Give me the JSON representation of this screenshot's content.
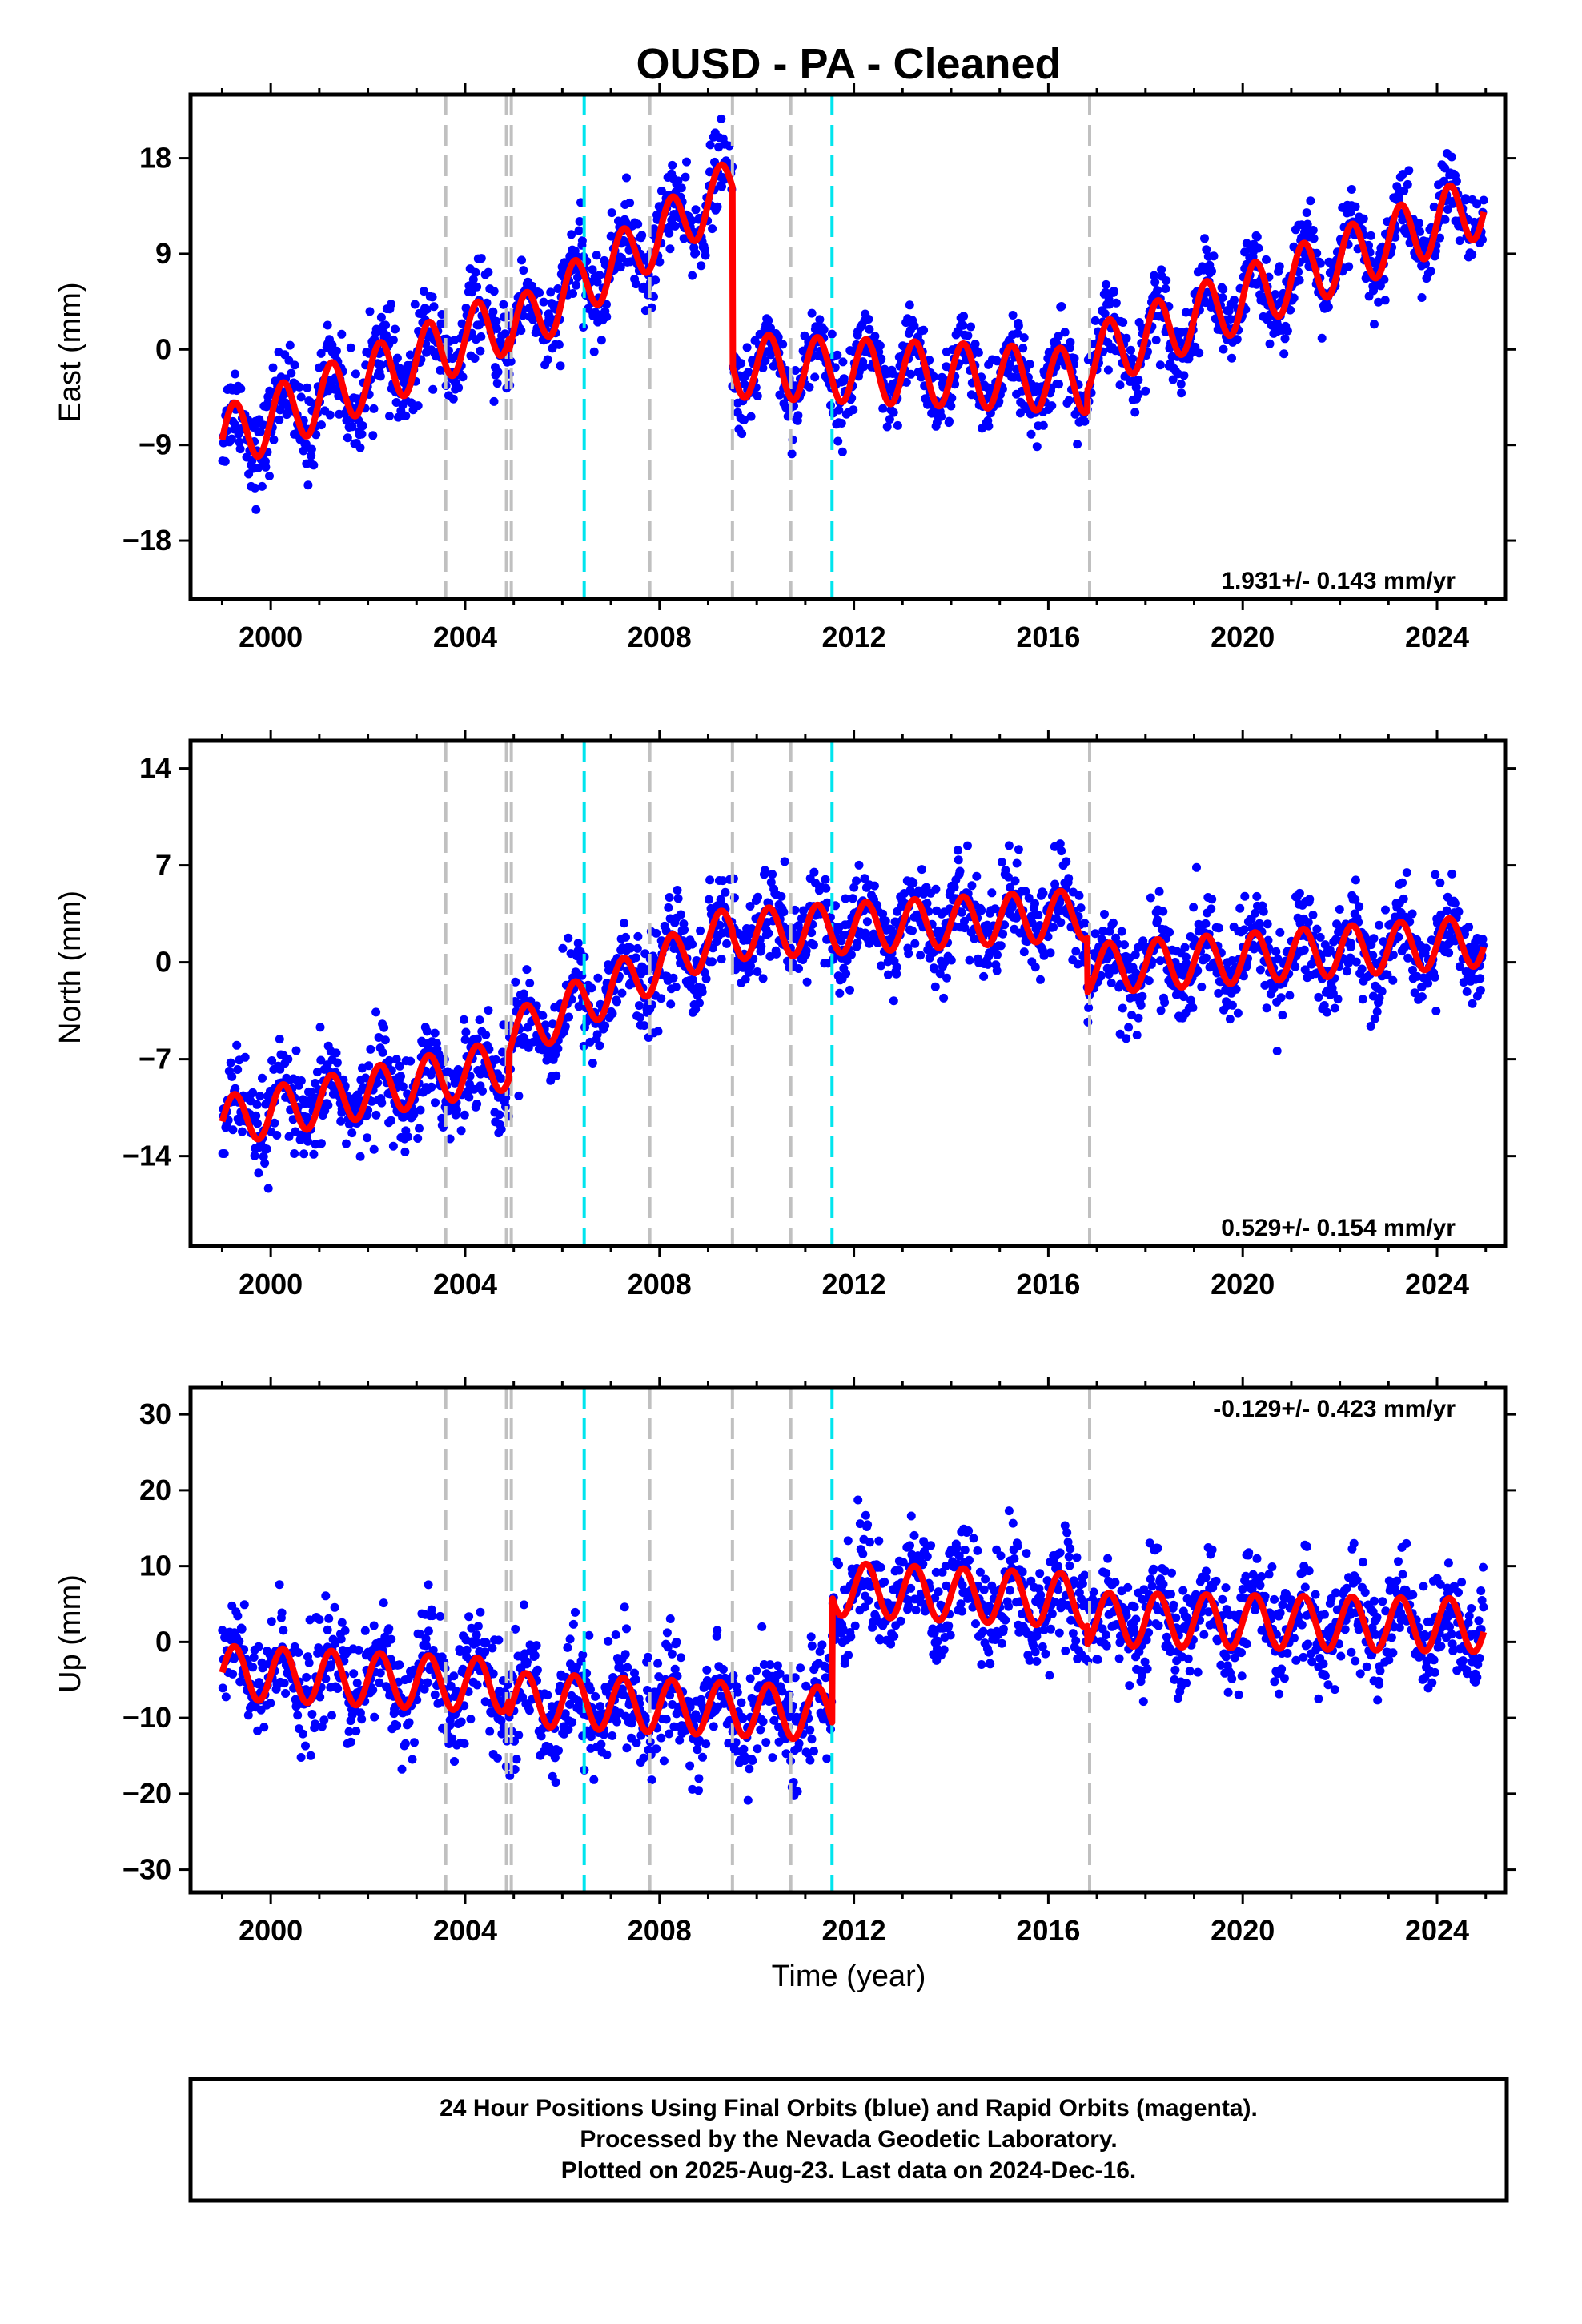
{
  "figure": {
    "title": "OUSD  - PA - Cleaned",
    "xlabel": "Time (year)",
    "caption": [
      "24 Hour Positions Using Final Orbits (blue) and Rapid Orbits (magenta).",
      "Processed by the Nevada Geodetic Laboratory.",
      "Plotted on 2025-Aug-23. Last data on 2024-Dec-16."
    ]
  },
  "colors": {
    "points": "#0000ff",
    "model": "#ff0000",
    "equipment_change": "#c0c0c0",
    "earthquake": "#00e5ee"
  },
  "chart_data": [
    {
      "type": "scatter",
      "component": "East",
      "ylabel": "East (mm)",
      "rate_text": "1.931+/- 0.143 mm/yr",
      "rate_position": "bottom-right",
      "xlim": [
        1998.35,
        2025.4
      ],
      "ylim": [
        -23.5,
        24
      ],
      "xticks": [
        2000,
        2004,
        2008,
        2012,
        2016,
        2020,
        2024
      ],
      "yticks": [
        -18,
        -9,
        0,
        9,
        18
      ],
      "series": [
        {
          "name": "24 Hour Positions (Final Orbits)",
          "kind": "points",
          "segments": [
            {
              "from": 1999.0,
              "to": 2004.9,
              "start": -8.5,
              "rate": 1.9,
              "amplitude": 3.0,
              "noise": 2.8
            },
            {
              "from": 2004.9,
              "to": 2009.5,
              "start": 1.5,
              "rate": 3.0,
              "amplitude": 2.8,
              "noise": 2.6
            },
            {
              "from": 2009.5,
              "to": 2016.8,
              "start": -1.5,
              "rate": -0.2,
              "amplitude": 3.0,
              "noise": 2.4
            },
            {
              "from": 2016.8,
              "to": 2024.96,
              "start": -1.0,
              "rate": 1.8,
              "amplitude": 3.0,
              "noise": 2.4
            }
          ]
        },
        {
          "name": "Model fit",
          "kind": "line"
        }
      ],
      "steps": [
        2004.9,
        2009.5,
        2016.8
      ]
    },
    {
      "type": "scatter",
      "component": "North",
      "ylabel": "North (mm)",
      "rate_text": "0.529+/- 0.154 mm/yr",
      "rate_position": "bottom-right",
      "xlim": [
        1998.35,
        2025.4
      ],
      "ylim": [
        -20.5,
        16
      ],
      "xticks": [
        2000,
        2004,
        2008,
        2012,
        2016,
        2020,
        2024
      ],
      "yticks": [
        -14,
        -7,
        0,
        7,
        14
      ],
      "series": [
        {
          "name": "24 Hour Positions (Final Orbits)",
          "kind": "points",
          "segments": [
            {
              "from": 1999.0,
              "to": 2004.9,
              "start": -11.5,
              "rate": 0.7,
              "amplitude": 1.8,
              "noise": 2.2
            },
            {
              "from": 2004.9,
              "to": 2009.5,
              "start": -5.5,
              "rate": 1.7,
              "amplitude": 1.8,
              "noise": 2.2
            },
            {
              "from": 2009.5,
              "to": 2016.8,
              "start": 2.0,
              "rate": 0.2,
              "amplitude": 1.8,
              "noise": 2.2
            },
            {
              "from": 2016.8,
              "to": 2024.96,
              "start": -0.5,
              "rate": 0.25,
              "amplitude": 1.8,
              "noise": 2.2
            }
          ]
        },
        {
          "name": "Model fit",
          "kind": "line"
        }
      ],
      "steps": [
        2004.9,
        2009.5,
        2016.8
      ]
    },
    {
      "type": "scatter",
      "component": "Up",
      "ylabel": "Up (mm)",
      "rate_text": "-0.129+/- 0.423 mm/yr",
      "rate_position": "top-right",
      "xlim": [
        1998.35,
        2025.4
      ],
      "ylim": [
        -33,
        33.5
      ],
      "xticks": [
        2000,
        2004,
        2008,
        2012,
        2016,
        2020,
        2024
      ],
      "yticks": [
        -30,
        -20,
        -10,
        0,
        10,
        20,
        30
      ],
      "series": [
        {
          "name": "24 Hour Positions (Final Orbits)",
          "kind": "points",
          "segments": [
            {
              "from": 1999.0,
              "to": 2004.9,
              "start": -4.0,
              "rate": -0.3,
              "amplitude": 3.5,
              "noise": 4.8
            },
            {
              "from": 2004.9,
              "to": 2011.55,
              "start": -7.5,
              "rate": -0.3,
              "amplitude": 3.5,
              "noise": 4.8
            },
            {
              "from": 2011.55,
              "to": 2016.8,
              "start": 7.0,
              "rate": -0.3,
              "amplitude": 3.5,
              "noise": 4.8
            },
            {
              "from": 2016.8,
              "to": 2024.96,
              "start": 3.0,
              "rate": -0.1,
              "amplitude": 3.5,
              "noise": 4.5
            }
          ]
        },
        {
          "name": "Model fit",
          "kind": "line"
        }
      ],
      "steps": [
        2004.9,
        2011.55,
        2016.8
      ]
    }
  ],
  "offsets": {
    "equipment_change": [
      2003.6,
      2004.85,
      2004.95,
      2007.8,
      2009.5,
      2010.7,
      2016.85
    ],
    "earthquake": [
      2006.45,
      2011.55
    ]
  }
}
